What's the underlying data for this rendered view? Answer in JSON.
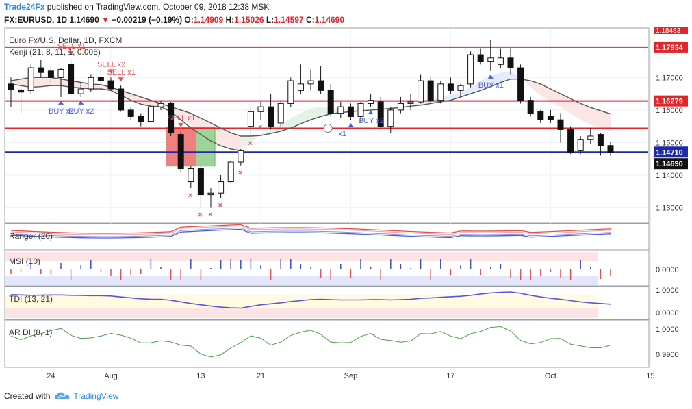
{
  "header": {
    "publisher": "Trade24Fx",
    "published_text": "published on TradingView.com, October 09, 2018 12:38 MSK",
    "symbol": "FX:EURUSD, 1D",
    "last": "1.14690",
    "change": "−0.00219 (−0.19%)",
    "o_label": "O:",
    "o_value": "1.14909",
    "h_label": "H:",
    "h_value": "1.15026",
    "l_label": "L:",
    "l_value": "1.14597",
    "c_label": "C:",
    "c_value": "1.14690"
  },
  "chart_data": {
    "type": "candlestick",
    "title": "Euro Fx/U.S. Dollar, 1D, FXCM",
    "indicator_label": "Kenji (21, 8, 11, 1, 0.005)",
    "y_ticks": [
      1.13,
      1.14,
      1.15,
      1.16,
      1.17
    ],
    "y_tick_labels": [
      "1.13000",
      "1.14000",
      "1.15000",
      "1.16000",
      "1.17000"
    ],
    "ylim": [
      1.1255,
      1.185
    ],
    "x_ticks": [
      {
        "i": 4,
        "label": "24"
      },
      {
        "i": 10,
        "label": "Aug"
      },
      {
        "i": 19,
        "label": "13"
      },
      {
        "i": 25,
        "label": "21"
      },
      {
        "i": 34,
        "label": "Sep"
      },
      {
        "i": 44,
        "label": "17"
      },
      {
        "i": 54,
        "label": "Oct"
      },
      {
        "i": 64,
        "label": "15"
      }
    ],
    "candles": [
      {
        "o": 1.168,
        "h": 1.17,
        "l": 1.161,
        "c": 1.1662
      },
      {
        "o": 1.1662,
        "h": 1.168,
        "l": 1.159,
        "c": 1.1655
      },
      {
        "o": 1.166,
        "h": 1.174,
        "l": 1.165,
        "c": 1.173
      },
      {
        "o": 1.173,
        "h": 1.1755,
        "l": 1.17,
        "c": 1.1715
      },
      {
        "o": 1.172,
        "h": 1.1735,
        "l": 1.168,
        "c": 1.17
      },
      {
        "o": 1.17,
        "h": 1.173,
        "l": 1.164,
        "c": 1.1725
      },
      {
        "o": 1.174,
        "h": 1.1755,
        "l": 1.164,
        "c": 1.165
      },
      {
        "o": 1.165,
        "h": 1.1685,
        "l": 1.164,
        "c": 1.1665
      },
      {
        "o": 1.1665,
        "h": 1.171,
        "l": 1.1655,
        "c": 1.17
      },
      {
        "o": 1.17,
        "h": 1.172,
        "l": 1.168,
        "c": 1.169
      },
      {
        "o": 1.169,
        "h": 1.17,
        "l": 1.166,
        "c": 1.1665
      },
      {
        "o": 1.1665,
        "h": 1.1675,
        "l": 1.1595,
        "c": 1.16
      },
      {
        "o": 1.16,
        "h": 1.161,
        "l": 1.157,
        "c": 1.158
      },
      {
        "o": 1.158,
        "h": 1.159,
        "l": 1.155,
        "c": 1.1565
      },
      {
        "o": 1.1565,
        "h": 1.162,
        "l": 1.156,
        "c": 1.161
      },
      {
        "o": 1.161,
        "h": 1.163,
        "l": 1.16,
        "c": 1.162
      },
      {
        "o": 1.162,
        "h": 1.1625,
        "l": 1.152,
        "c": 1.153
      },
      {
        "o": 1.1525,
        "h": 1.1535,
        "l": 1.141,
        "c": 1.142
      },
      {
        "o": 1.138,
        "h": 1.143,
        "l": 1.136,
        "c": 1.142
      },
      {
        "o": 1.142,
        "h": 1.143,
        "l": 1.13,
        "c": 1.134
      },
      {
        "o": 1.134,
        "h": 1.136,
        "l": 1.13,
        "c": 1.1345
      },
      {
        "o": 1.1345,
        "h": 1.14,
        "l": 1.133,
        "c": 1.138
      },
      {
        "o": 1.138,
        "h": 1.1445,
        "l": 1.1375,
        "c": 1.144
      },
      {
        "o": 1.144,
        "h": 1.148,
        "l": 1.143,
        "c": 1.1475
      },
      {
        "o": 1.155,
        "h": 1.161,
        "l": 1.152,
        "c": 1.1595
      },
      {
        "o": 1.1595,
        "h": 1.1625,
        "l": 1.157,
        "c": 1.161
      },
      {
        "o": 1.161,
        "h": 1.165,
        "l": 1.154,
        "c": 1.155
      },
      {
        "o": 1.156,
        "h": 1.163,
        "l": 1.155,
        "c": 1.162
      },
      {
        "o": 1.162,
        "h": 1.17,
        "l": 1.161,
        "c": 1.169
      },
      {
        "o": 1.166,
        "h": 1.174,
        "l": 1.165,
        "c": 1.168
      },
      {
        "o": 1.168,
        "h": 1.1725,
        "l": 1.166,
        "c": 1.169
      },
      {
        "o": 1.169,
        "h": 1.1735,
        "l": 1.165,
        "c": 1.166
      },
      {
        "o": 1.166,
        "h": 1.168,
        "l": 1.158,
        "c": 1.159
      },
      {
        "o": 1.159,
        "h": 1.1625,
        "l": 1.1575,
        "c": 1.161
      },
      {
        "o": 1.161,
        "h": 1.162,
        "l": 1.157,
        "c": 1.158
      },
      {
        "o": 1.158,
        "h": 1.1625,
        "l": 1.156,
        "c": 1.162
      },
      {
        "o": 1.162,
        "h": 1.165,
        "l": 1.161,
        "c": 1.163
      },
      {
        "o": 1.1625,
        "h": 1.164,
        "l": 1.154,
        "c": 1.155
      },
      {
        "o": 1.155,
        "h": 1.161,
        "l": 1.153,
        "c": 1.16
      },
      {
        "o": 1.16,
        "h": 1.164,
        "l": 1.159,
        "c": 1.162
      },
      {
        "o": 1.162,
        "h": 1.165,
        "l": 1.16,
        "c": 1.1625
      },
      {
        "o": 1.1625,
        "h": 1.171,
        "l": 1.162,
        "c": 1.169
      },
      {
        "o": 1.169,
        "h": 1.17,
        "l": 1.162,
        "c": 1.163
      },
      {
        "o": 1.163,
        "h": 1.169,
        "l": 1.162,
        "c": 1.168
      },
      {
        "o": 1.168,
        "h": 1.17,
        "l": 1.165,
        "c": 1.166
      },
      {
        "o": 1.166,
        "h": 1.168,
        "l": 1.164,
        "c": 1.1675
      },
      {
        "o": 1.168,
        "h": 1.178,
        "l": 1.167,
        "c": 1.177
      },
      {
        "o": 1.177,
        "h": 1.179,
        "l": 1.174,
        "c": 1.175
      },
      {
        "o": 1.175,
        "h": 1.1815,
        "l": 1.172,
        "c": 1.176
      },
      {
        "o": 1.174,
        "h": 1.179,
        "l": 1.173,
        "c": 1.176
      },
      {
        "o": 1.176,
        "h": 1.179,
        "l": 1.171,
        "c": 1.173
      },
      {
        "o": 1.173,
        "h": 1.174,
        "l": 1.162,
        "c": 1.163
      },
      {
        "o": 1.163,
        "h": 1.164,
        "l": 1.158,
        "c": 1.159
      },
      {
        "o": 1.1595,
        "h": 1.16,
        "l": 1.156,
        "c": 1.157
      },
      {
        "o": 1.158,
        "h": 1.16,
        "l": 1.156,
        "c": 1.157
      },
      {
        "o": 1.157,
        "h": 1.159,
        "l": 1.15,
        "c": 1.154
      },
      {
        "o": 1.154,
        "h": 1.155,
        "l": 1.1465,
        "c": 1.147
      },
      {
        "o": 1.1475,
        "h": 1.152,
        "l": 1.1465,
        "c": 1.151
      },
      {
        "o": 1.151,
        "h": 1.1545,
        "l": 1.1495,
        "c": 1.152
      },
      {
        "o": 1.1525,
        "h": 1.153,
        "l": 1.146,
        "c": 1.149
      },
      {
        "o": 1.1491,
        "h": 1.1503,
        "l": 1.146,
        "c": 1.1469
      }
    ],
    "kenji_line": [
      1.168,
      1.1675,
      1.167,
      1.1672,
      1.1675,
      1.1675,
      1.167,
      1.1668,
      1.1665,
      1.1665,
      1.166,
      1.1645,
      1.163,
      1.1618,
      1.1612,
      1.161,
      1.1595,
      1.157,
      1.1545,
      1.1525,
      1.1505,
      1.149,
      1.148,
      1.1475,
      1.15,
      1.1525,
      1.154,
      1.1555,
      1.1575,
      1.159,
      1.1605,
      1.161,
      1.1605,
      1.16,
      1.16,
      1.16,
      1.1605,
      1.1605,
      1.16,
      1.1605,
      1.161,
      1.1625,
      1.163,
      1.164,
      1.1648,
      1.1655,
      1.167,
      1.169,
      1.1705,
      1.1715,
      1.172,
      1.17,
      1.167,
      1.1645,
      1.1625,
      1.161,
      1.159,
      1.157,
      1.1555,
      1.1545,
      1.1535
    ],
    "kenji_signal": [
      1.169,
      1.1695,
      1.17,
      1.17,
      1.17,
      1.1695,
      1.169,
      1.1685,
      1.168,
      1.1678,
      1.167,
      1.166,
      1.165,
      1.164,
      1.163,
      1.162,
      1.161,
      1.16,
      1.159,
      1.1575,
      1.156,
      1.1545,
      1.153,
      1.152,
      1.152,
      1.1522,
      1.1528,
      1.1535,
      1.1545,
      1.1558,
      1.157,
      1.158,
      1.1588,
      1.1592,
      1.1595,
      1.1598,
      1.16,
      1.1602,
      1.1605,
      1.1608,
      1.1612,
      1.1615,
      1.162,
      1.1625,
      1.163,
      1.164,
      1.165,
      1.166,
      1.1672,
      1.1685,
      1.1695,
      1.1695,
      1.169,
      1.168,
      1.1665,
      1.165,
      1.1635,
      1.162,
      1.1608,
      1.1598,
      1.1588
    ],
    "levels": [
      {
        "price": 1.17934,
        "label": "1.17934",
        "color": "#e0252b"
      },
      {
        "price": 1.16279,
        "label": "1.16279",
        "color": "#e0252b"
      },
      {
        "price": 1.1544,
        "label": "",
        "color": "#e0252b"
      },
      {
        "price": 1.1471,
        "label": "1.14710",
        "color": "#1c2aa8"
      }
    ],
    "price_label_top": "1.18483",
    "last_price": {
      "price": 1.1469,
      "label": "1.14690"
    },
    "signals": [
      {
        "i": 6,
        "type": "sell",
        "label": "SELL x1"
      },
      {
        "i": 10,
        "type": "sell",
        "label": "SELL x2"
      },
      {
        "i": 11,
        "type": "sell",
        "label": "SELL x1"
      },
      {
        "i": 17,
        "type": "sell",
        "label": "SELL x1"
      },
      {
        "i": 5,
        "type": "buy",
        "label": "BUY x2"
      },
      {
        "i": 7,
        "type": "buy",
        "label": "BUY x2"
      },
      {
        "i": 36,
        "type": "buy",
        "label": "BUY x2"
      },
      {
        "i": 48,
        "type": "buy",
        "label": "BUY x1"
      },
      {
        "i": 34,
        "type": "buy",
        "label": "x1"
      }
    ],
    "x_marks": [
      18,
      19,
      20,
      21,
      23,
      24,
      25
    ],
    "highlight_box": {
      "i_start": 16,
      "i_end": 20,
      "p_low": 1.1428,
      "p_high": 1.1546
    },
    "panels": [
      {
        "name": "Ranger (20)"
      },
      {
        "name": "MSI (10)",
        "ticks": [
          "0.0000"
        ]
      },
      {
        "name": "TDI (13, 21)",
        "ticks": [
          "1.0000",
          "0.0000"
        ]
      },
      {
        "name": "AR DI (8, 1)",
        "ticks": [
          "1.0000",
          "0.9900"
        ]
      }
    ]
  },
  "footer": {
    "created_with": "Created with",
    "brand": "TradingView"
  }
}
